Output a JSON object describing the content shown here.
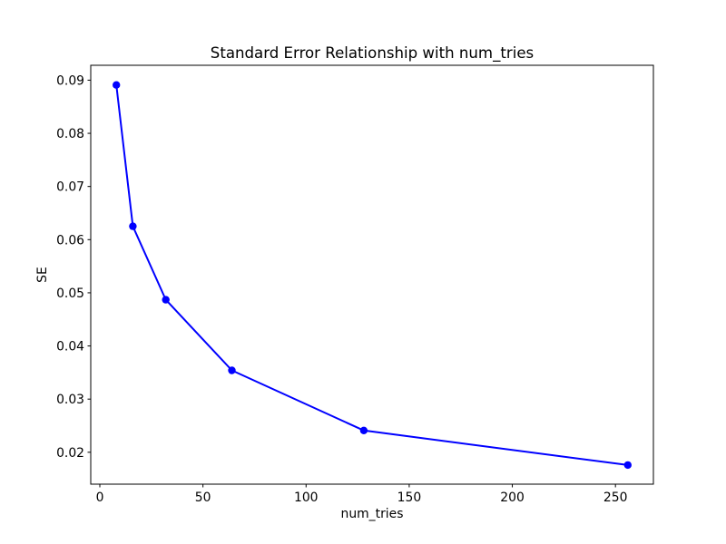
{
  "figure": {
    "background": "#ffffff"
  },
  "chart_data": {
    "type": "line",
    "title": "Standard Error Relationship with num_tries",
    "xlabel": "num_tries",
    "ylabel": "SE",
    "x": [
      8,
      16,
      32,
      64,
      128,
      256
    ],
    "y": [
      0.0891,
      0.0625,
      0.0487,
      0.0354,
      0.0241,
      0.0176
    ],
    "line_color": "#0000ff",
    "marker": "circle",
    "marker_color": "#0000ff",
    "grid": false,
    "xlim": [
      -4.4,
      268.4
    ],
    "ylim": [
      0.014,
      0.0928
    ],
    "xticks": {
      "values": [
        0,
        50,
        100,
        150,
        200,
        250
      ],
      "labels": [
        "0",
        "50",
        "100",
        "150",
        "200",
        "250"
      ]
    },
    "yticks": {
      "values": [
        0.02,
        0.03,
        0.04,
        0.05,
        0.06,
        0.07,
        0.08,
        0.09
      ],
      "labels": [
        "0.02",
        "0.03",
        "0.04",
        "0.05",
        "0.06",
        "0.07",
        "0.08",
        "0.09"
      ]
    }
  }
}
